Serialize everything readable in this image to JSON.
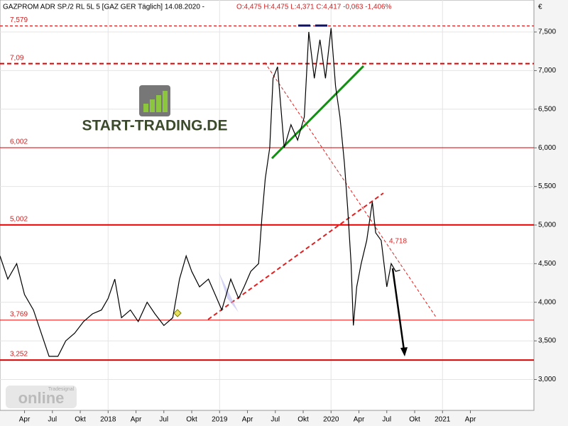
{
  "chart_data": {
    "type": "line",
    "title": "GAZPROM ADR SP./2 RL 5L 5 [GAZ GER  Täglich] 14.08.2020 -",
    "subtitle": "O:4,475 H:4,475 L:4,371 C:4,417 -0,063 -1,406%",
    "y_axis_label": "€",
    "logo": "START-TRADING.DE",
    "watermark": "online",
    "watermark_brand": "Tradesignal",
    "annotations": [
      "4,718"
    ],
    "xlim": [
      2017.03,
      2021.82
    ],
    "ylim": [
      2.6,
      7.914
    ],
    "xticks": [
      {
        "value": 2017.25,
        "label": "Apr"
      },
      {
        "value": 2017.5,
        "label": "Jul"
      },
      {
        "value": 2017.75,
        "label": "Okt"
      },
      2018,
      {
        "value": 2018.25,
        "label": "Apr"
      },
      {
        "value": 2018.5,
        "label": "Jul"
      },
      {
        "value": 2018.75,
        "label": "Okt"
      },
      2019,
      {
        "value": 2019.25,
        "label": "Apr"
      },
      {
        "value": 2019.5,
        "label": "Jul"
      },
      {
        "value": 2019.75,
        "label": "Okt"
      },
      2020,
      {
        "value": 2020.25,
        "label": "Apr"
      },
      {
        "value": 2020.5,
        "label": "Jul"
      },
      {
        "value": 2020.75,
        "label": "Okt"
      },
      2021,
      {
        "value": 2021.25,
        "label": "Apr"
      }
    ],
    "yticks": [
      {
        "value": 3,
        "label": "3,000"
      },
      {
        "value": 3.5,
        "label": "3,500"
      },
      {
        "value": 4,
        "label": "4,000"
      },
      {
        "value": 4.5,
        "label": "4,500"
      },
      {
        "value": 5,
        "label": "5,000"
      },
      {
        "value": 5.5,
        "label": "5,500"
      },
      {
        "value": 6,
        "label": "6,000"
      },
      {
        "value": 6.5,
        "label": "6,500"
      },
      {
        "value": 7,
        "label": "7,000"
      },
      {
        "value": 7.5,
        "label": "7,500"
      }
    ],
    "grid": true,
    "levels": [
      {
        "value": 7.579,
        "label": "7,579",
        "dashed": true,
        "thick": false
      },
      {
        "value": 7.09,
        "label": "7,09",
        "dashed": true,
        "thick": true
      },
      {
        "value": 6.002,
        "label": "6,002",
        "dashed": false,
        "thick": false
      },
      {
        "value": 5.002,
        "label": "5,002",
        "dashed": false,
        "thick": true
      },
      {
        "value": 3.769,
        "label": "3,769",
        "dashed": false,
        "thick": false
      },
      {
        "value": 3.252,
        "label": "3,252",
        "dashed": false,
        "thick": true
      }
    ],
    "series": [
      {
        "name": "GAZPROM ADR",
        "color": "#000000",
        "x": [
          2017.03,
          2017.1,
          2017.18,
          2017.25,
          2017.33,
          2017.4,
          2017.47,
          2017.55,
          2017.62,
          2017.7,
          2017.78,
          2017.86,
          2017.94,
          2018.0,
          2018.06,
          2018.12,
          2018.2,
          2018.27,
          2018.35,
          2018.42,
          2018.5,
          2018.58,
          2018.64,
          2018.7,
          2018.75,
          2018.82,
          2018.9,
          2018.96,
          2019.02,
          2019.1,
          2019.17,
          2019.22,
          2019.28,
          2019.35,
          2019.38,
          2019.41,
          2019.45,
          2019.48,
          2019.52,
          2019.58,
          2019.64,
          2019.7,
          2019.76,
          2019.8,
          2019.85,
          2019.9,
          2019.95,
          2020.0,
          2020.04,
          2020.08,
          2020.12,
          2020.15,
          2020.18,
          2020.2,
          2020.23,
          2020.27,
          2020.32,
          2020.37,
          2020.4,
          2020.45,
          2020.5,
          2020.54,
          2020.58,
          2020.62
        ],
        "values": [
          4.6,
          4.3,
          4.5,
          4.1,
          3.9,
          3.6,
          3.3,
          3.3,
          3.5,
          3.6,
          3.75,
          3.85,
          3.9,
          4.05,
          4.3,
          3.8,
          3.9,
          3.75,
          4.0,
          3.85,
          3.7,
          3.8,
          4.3,
          4.6,
          4.4,
          4.2,
          4.3,
          4.1,
          3.9,
          4.3,
          4.05,
          4.2,
          4.4,
          4.5,
          5.1,
          5.6,
          6.0,
          6.9,
          7.05,
          6.0,
          6.3,
          6.1,
          6.4,
          7.5,
          6.9,
          7.4,
          6.9,
          7.55,
          6.8,
          6.4,
          5.8,
          5.2,
          4.5,
          3.7,
          4.2,
          4.5,
          4.8,
          5.3,
          4.9,
          4.8,
          4.2,
          4.5,
          4.4,
          4.417
        ]
      }
    ]
  }
}
